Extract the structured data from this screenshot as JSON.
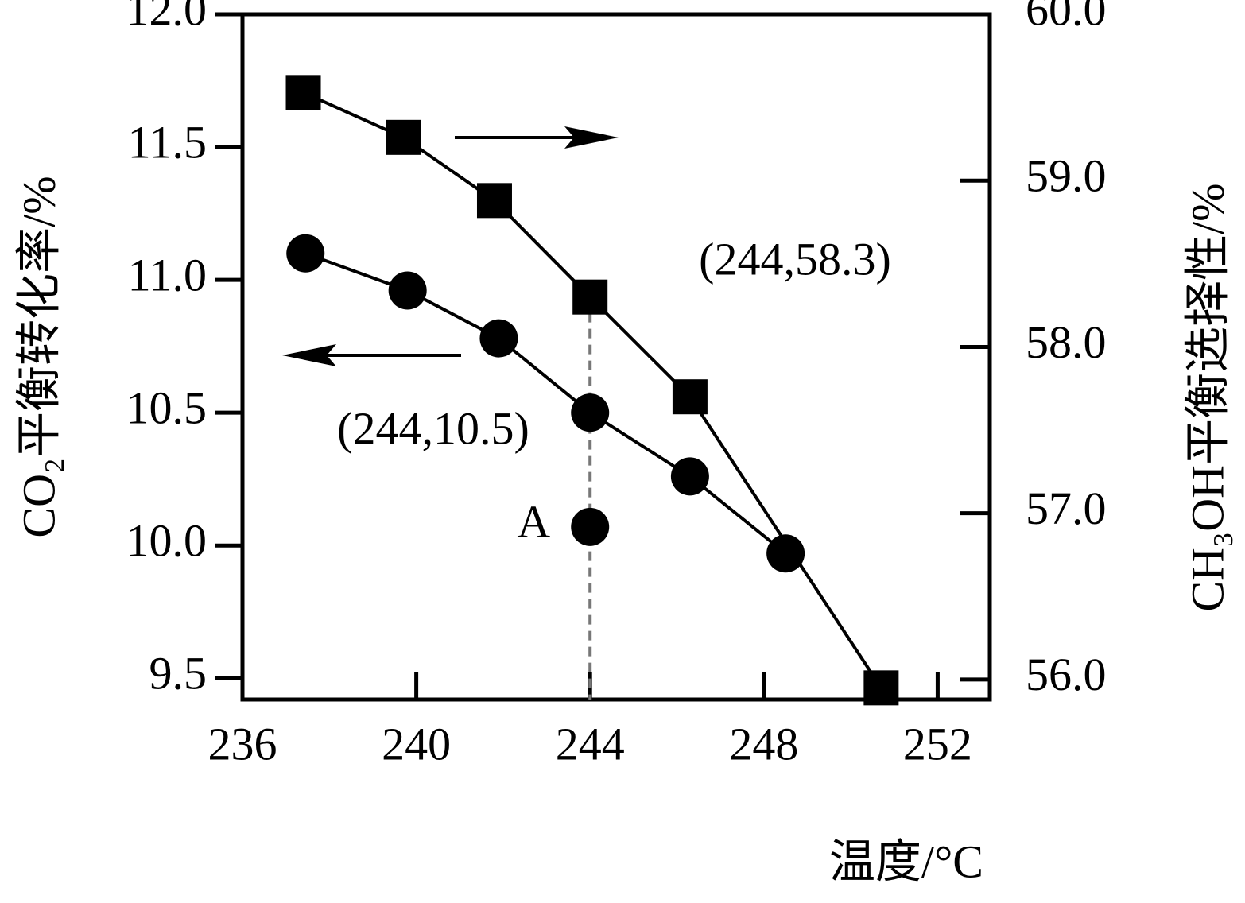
{
  "chart_data": {
    "type": "line",
    "x_label": "温度/°C",
    "y_label": "CO₂平衡转化率/%",
    "y2_label": "CH₃OH平衡选择性/%",
    "xlim": [
      236,
      253.2
    ],
    "xticks": [
      236,
      240,
      244,
      248,
      252
    ],
    "ylim": [
      9.42,
      12.0
    ],
    "yticks": [
      9.5,
      {
        "value": 10,
        "label": "10.0"
      },
      10.5,
      {
        "value": 11,
        "label": "11.0"
      },
      11.5,
      {
        "value": 12,
        "label": "12.0"
      }
    ],
    "y2lim": [
      55.88,
      60.0
    ],
    "y2ticks": [
      {
        "value": 56,
        "label": "56.0"
      },
      {
        "value": 57,
        "label": "57.0"
      },
      {
        "value": 58,
        "label": "58.0"
      },
      {
        "value": 59,
        "label": "59.0"
      },
      {
        "value": 60,
        "label": "60.0"
      }
    ],
    "series": [
      {
        "color": "#000000",
        "marker": "circle",
        "axis": "y",
        "x": [
          237.45,
          239.8,
          241.9,
          244,
          246.3,
          248.5
        ],
        "values": [
          11.1,
          10.96,
          10.78,
          10.5,
          10.26,
          9.97
        ]
      },
      {
        "color": "#000000",
        "marker": "square",
        "axis": "y2",
        "x": [
          237.4,
          239.7,
          241.8,
          244,
          246.3,
          250.7
        ],
        "values": [
          59.53,
          59.26,
          58.88,
          58.3,
          57.7,
          55.95
        ]
      }
    ],
    "annotations": [
      {
        "label": "(244,58.3)"
      },
      {
        "label": "(244,10.5)"
      }
    ],
    "point_a": {
      "label": "A",
      "x": 244,
      "y": 10.07
    }
  }
}
